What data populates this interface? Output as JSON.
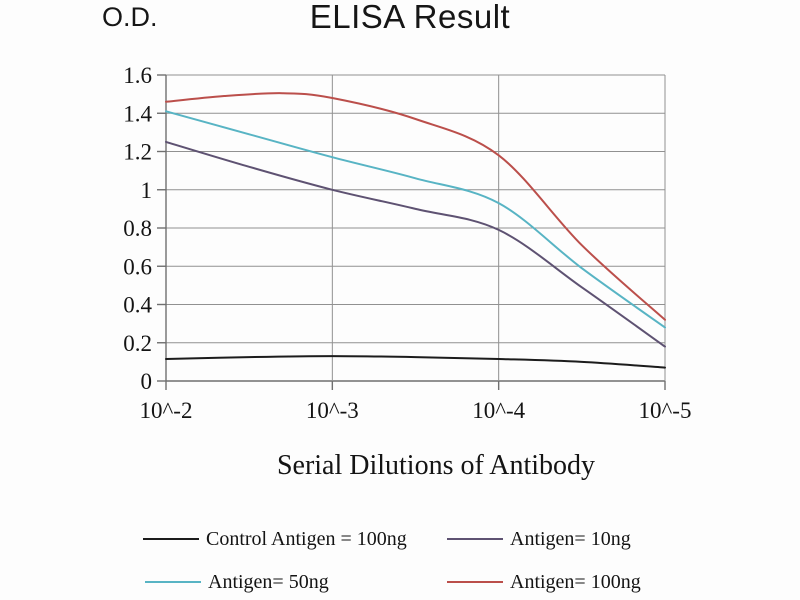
{
  "header": {
    "od_label": "O.D.",
    "title": "ELISA Result"
  },
  "xaxis_title": "Serial Dilutions of Antibody",
  "chart_data": {
    "type": "line",
    "title": "ELISA Result",
    "ylabel": "O.D.",
    "xlabel": "Serial Dilutions of Antibody",
    "x_tick_labels": [
      "10^-2",
      "10^-3",
      "10^-4",
      "10^-5"
    ],
    "y_tick_labels": [
      "0",
      "0.2",
      "0.4",
      "0.6",
      "0.8",
      "1",
      "1.2",
      "1.4",
      "1.6"
    ],
    "y_ticks": [
      0,
      0.2,
      0.4,
      0.6,
      0.8,
      1.0,
      1.2,
      1.4,
      1.6
    ],
    "ylim": [
      0,
      1.6
    ],
    "grid": true,
    "legend_position": "bottom",
    "grid_color": "#919191",
    "axis_color": "#6f6f6f",
    "series": [
      {
        "name": "Control Antigen = 100ng",
        "color": "#1c1c1c",
        "values_at_ticks": [
          0.12,
          0.13,
          0.12,
          0.07
        ],
        "points": [
          [
            0,
            0.115
          ],
          [
            0.5,
            0.125
          ],
          [
            1,
            0.13
          ],
          [
            1.5,
            0.125
          ],
          [
            2,
            0.115
          ],
          [
            2.5,
            0.1
          ],
          [
            3,
            0.07
          ]
        ]
      },
      {
        "name": "Antigen= 10ng",
        "color": "#5e5272",
        "values_at_ticks": [
          1.25,
          1.0,
          0.79,
          0.18
        ],
        "points": [
          [
            0,
            1.25
          ],
          [
            0.5,
            1.12
          ],
          [
            1,
            1.0
          ],
          [
            1.5,
            0.9
          ],
          [
            2,
            0.79
          ],
          [
            2.5,
            0.49
          ],
          [
            3,
            0.18
          ]
        ]
      },
      {
        "name": "Antigen= 50ng",
        "color": "#58b4c4",
        "values_at_ticks": [
          1.41,
          1.17,
          0.93,
          0.28
        ],
        "points": [
          [
            0,
            1.41
          ],
          [
            0.5,
            1.29
          ],
          [
            1,
            1.17
          ],
          [
            1.5,
            1.06
          ],
          [
            2,
            0.93
          ],
          [
            2.5,
            0.59
          ],
          [
            3,
            0.28
          ]
        ]
      },
      {
        "name": "Antigen= 100ng",
        "color": "#bb4f4b",
        "values_at_ticks": [
          1.46,
          1.48,
          1.18,
          0.32
        ],
        "points": [
          [
            0,
            1.46
          ],
          [
            0.35,
            1.49
          ],
          [
            0.7,
            1.505
          ],
          [
            1,
            1.48
          ],
          [
            1.5,
            1.37
          ],
          [
            2,
            1.18
          ],
          [
            2.5,
            0.71
          ],
          [
            3,
            0.32
          ]
        ]
      }
    ]
  }
}
